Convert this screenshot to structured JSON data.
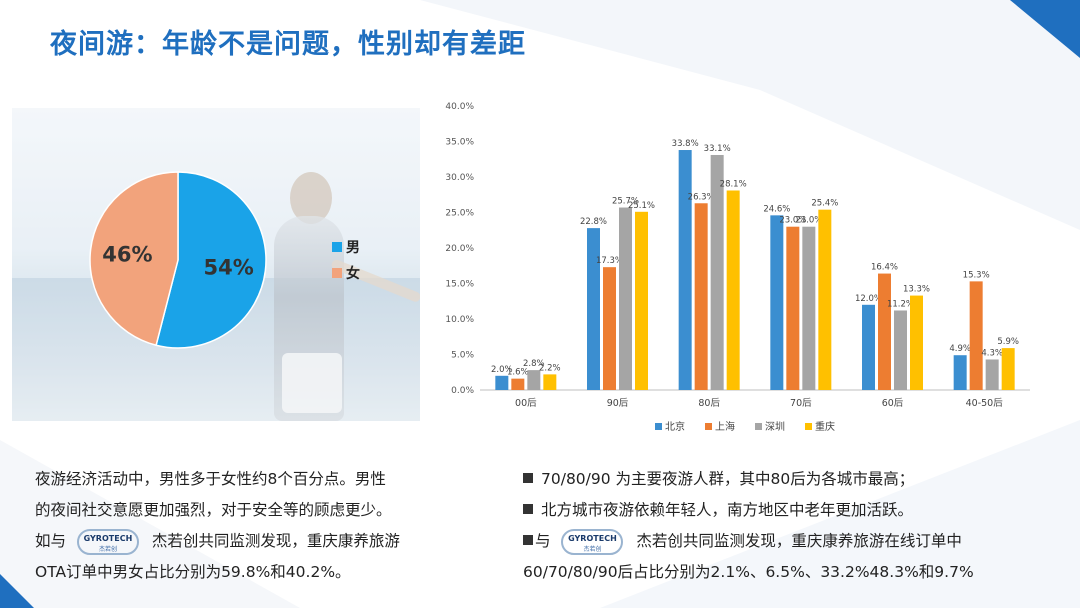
{
  "slide": {
    "title": "夜间游：年龄不是问题，性别却有差距",
    "colors": {
      "title": "#1f6fbf",
      "accent_blue": "#1f6fbf"
    }
  },
  "pie": {
    "type": "pie",
    "slices": [
      {
        "label": "男",
        "value": 54,
        "display": "54%",
        "color": "#1aa3e8"
      },
      {
        "label": "女",
        "value": 46,
        "display": "46%",
        "color": "#f2a37c"
      }
    ]
  },
  "chart_data": {
    "type": "bar",
    "categories": [
      "00后",
      "90后",
      "80后",
      "70后",
      "60后",
      "40-50后"
    ],
    "series": [
      {
        "name": "北京",
        "color": "#3b8ed0",
        "values": [
          2.0,
          22.8,
          33.8,
          24.6,
          12.0,
          4.9
        ]
      },
      {
        "name": "上海",
        "color": "#ed7d31",
        "values": [
          1.6,
          17.3,
          26.3,
          23.0,
          16.4,
          15.3
        ]
      },
      {
        "name": "深圳",
        "color": "#a5a5a5",
        "values": [
          2.8,
          25.7,
          33.1,
          23.0,
          11.2,
          4.3
        ]
      },
      {
        "name": "重庆",
        "color": "#ffc000",
        "values": [
          2.2,
          25.1,
          28.1,
          25.4,
          13.3,
          5.9
        ]
      }
    ],
    "ylim": [
      0,
      40
    ],
    "yticks": [
      "0.0%",
      "5.0%",
      "10.0%",
      "15.0%",
      "20.0%",
      "25.0%",
      "30.0%",
      "35.0%",
      "40.0%"
    ],
    "grid": false,
    "legend": "bottom"
  },
  "left_text": {
    "line1": "夜游经济活动中，男性多于女性约8个百分点。男性",
    "line2": "的夜间社交意愿更加强烈，对于安全等的顾虑更少。",
    "line3_pre": "如与",
    "line3_post": "杰若创共同监测发现，重庆康养旅游",
    "line4": "OTA订单中男女占比分别为59.8%和40.2%。"
  },
  "right_text": {
    "bullet1": "70/80/90 为主要夜游人群，其中80后为各城市最高；",
    "bullet2": "北方城市夜游依赖年轻人，南方地区中老年更加活跃。",
    "bullet3_pre": "与",
    "bullet3_post": "杰若创共同监测发现，重庆康养旅游在线订单中",
    "line4": "60/70/80/90后占比分别为2.1%、6.5%、33.2%48.3%和9.7%"
  },
  "logo": {
    "name": "GYROTECH",
    "sub": "杰若创"
  }
}
